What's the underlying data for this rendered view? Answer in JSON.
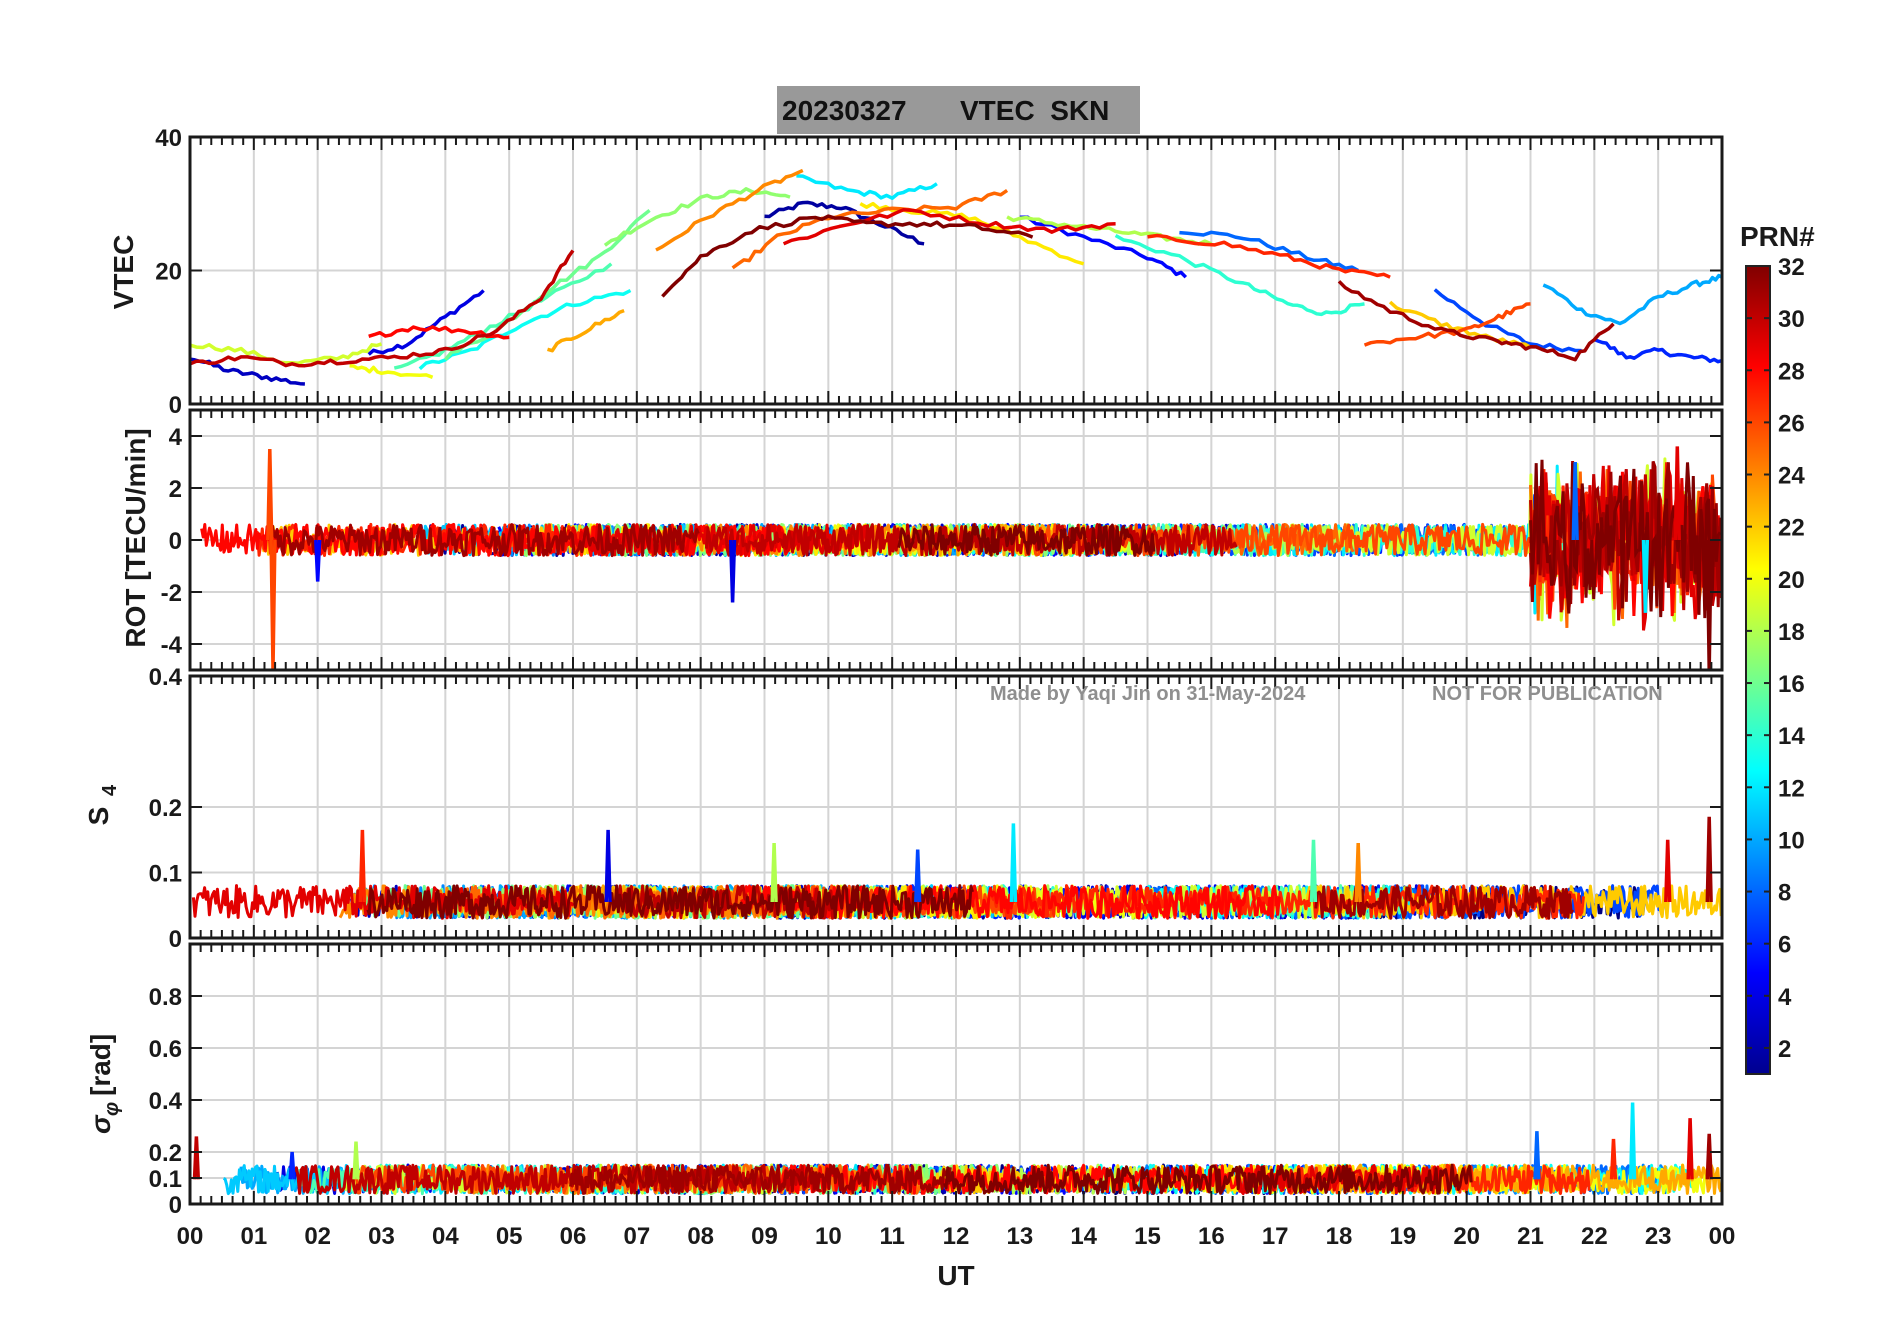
{
  "figure": {
    "title_date": "20230327",
    "title_text": "VTEC  SKN",
    "xlabel": "UT",
    "x_ticks": [
      "00",
      "01",
      "02",
      "03",
      "04",
      "05",
      "06",
      "07",
      "08",
      "09",
      "10",
      "11",
      "12",
      "13",
      "14",
      "15",
      "16",
      "17",
      "18",
      "19",
      "20",
      "21",
      "22",
      "23",
      "00"
    ],
    "watermark_author": "Made by Yaqi Jin on 31-May-2024",
    "watermark_notice": "NOT FOR PUBLICATION",
    "colorbar": {
      "label": "PRN#",
      "range": [
        1,
        32
      ],
      "tick_values": [
        2,
        4,
        6,
        8,
        10,
        12,
        14,
        16,
        18,
        20,
        22,
        24,
        26,
        28,
        30,
        32
      ],
      "tick_labels": [
        "2",
        "4",
        "6",
        "8",
        "10",
        "12",
        "14",
        "16",
        "18",
        "20",
        "22",
        "24",
        "26",
        "28",
        "30",
        "32"
      ]
    }
  },
  "chart_data": [
    {
      "type": "line",
      "panel": "vtec",
      "ylabel": "VTEC",
      "xlim": [
        0,
        24
      ],
      "ylim": [
        0,
        40
      ],
      "y_ticks": [
        0,
        20,
        40
      ],
      "y_tick_labels": [
        "0",
        "20",
        "40"
      ],
      "grid": true,
      "series": [
        {
          "name": "PRN 2",
          "prn": 2,
          "x": [
            9.0,
            9.6,
            10.2,
            10.8,
            11.5
          ],
          "y": [
            28,
            30,
            29.5,
            27,
            24
          ]
        },
        {
          "name": "PRN 3",
          "prn": 3,
          "x": [
            0.0,
            0.6,
            1.2,
            1.8
          ],
          "y": [
            7,
            5,
            4,
            3
          ]
        },
        {
          "name": "PRN 4",
          "prn": 4,
          "x": [
            2.8,
            3.4,
            4.0,
            4.6
          ],
          "y": [
            7.5,
            9,
            13,
            17
          ]
        },
        {
          "name": "PRN 5",
          "prn": 5,
          "x": [
            13.0,
            14.0,
            15.0,
            15.6
          ],
          "y": [
            28,
            25,
            22,
            19
          ]
        },
        {
          "name": "PRN 6",
          "prn": 6,
          "x": [
            22.0,
            22.5,
            23.0,
            23.5,
            24.0
          ],
          "y": [
            10,
            7,
            8,
            7,
            6.5
          ]
        },
        {
          "name": "PRN 7",
          "prn": 7,
          "x": [
            19.5,
            20.3,
            21.0,
            21.8
          ],
          "y": [
            17,
            12,
            9,
            8
          ]
        },
        {
          "name": "PRN 8",
          "prn": 8,
          "x": [
            15.5,
            16.5,
            17.5,
            18.3
          ],
          "y": [
            26,
            25,
            22,
            20
          ]
        },
        {
          "name": "PRN 10",
          "prn": 10,
          "x": [
            21.2,
            21.8,
            22.4,
            23.0,
            23.6,
            24.0
          ],
          "y": [
            18,
            14,
            12,
            16,
            18,
            19
          ]
        },
        {
          "name": "PRN 12",
          "prn": 12,
          "x": [
            9.5,
            10.3,
            11.0,
            11.7
          ],
          "y": [
            34,
            32,
            31,
            33
          ]
        },
        {
          "name": "PRN 13",
          "prn": 13,
          "x": [
            3.6,
            4.4,
            5.2,
            6.0,
            6.9
          ],
          "y": [
            5.5,
            8,
            12,
            15,
            17
          ]
        },
        {
          "name": "PRN 14",
          "prn": 14,
          "x": [
            14.5,
            15.5,
            16.5,
            17.2,
            17.8,
            18.4
          ],
          "y": [
            25,
            22,
            18,
            15,
            13.5,
            15
          ]
        },
        {
          "name": "PRN 15",
          "prn": 15,
          "x": [
            3.2,
            4.0,
            4.8,
            5.6,
            6.6
          ],
          "y": [
            5,
            8,
            12,
            16,
            21
          ]
        },
        {
          "name": "PRN 16",
          "prn": 16,
          "x": [
            4.0,
            4.8,
            5.6,
            6.4,
            7.2
          ],
          "y": [
            7,
            11,
            17,
            22,
            29
          ]
        },
        {
          "name": "PRN 17",
          "prn": 17,
          "x": [
            6.5,
            7.3,
            8.1,
            8.8,
            9.4
          ],
          "y": [
            24,
            28,
            31,
            32,
            31
          ]
        },
        {
          "name": "PRN 18",
          "prn": 18,
          "x": [
            12.8,
            13.6,
            14.4,
            15.2,
            16.0
          ],
          "y": [
            28,
            27,
            26,
            25,
            24
          ]
        },
        {
          "name": "PRN 19",
          "prn": 19,
          "x": [
            0.0,
            0.8,
            1.6,
            2.4,
            3.0
          ],
          "y": [
            9,
            8,
            6,
            7,
            9
          ]
        },
        {
          "name": "PRN 20",
          "prn": 20,
          "x": [
            2.5,
            3.0,
            3.8
          ],
          "y": [
            5.5,
            5,
            4
          ]
        },
        {
          "name": "PRN 21",
          "prn": 21,
          "x": [
            10.5,
            11.3,
            12.2,
            13.0,
            14.0
          ],
          "y": [
            30,
            29,
            28,
            25,
            21
          ]
        },
        {
          "name": "PRN 22",
          "prn": 22,
          "x": [
            18.8,
            19.6,
            20.3,
            21.0
          ],
          "y": [
            15,
            12,
            10,
            8.5
          ]
        },
        {
          "name": "PRN 23",
          "prn": 23,
          "x": [
            5.6,
            6.2,
            6.8
          ],
          "y": [
            8,
            11,
            14
          ]
        },
        {
          "name": "PRN 24",
          "prn": 24,
          "x": [
            7.3,
            8.1,
            8.9,
            9.6
          ],
          "y": [
            23,
            28,
            32,
            35
          ]
        },
        {
          "name": "PRN 25",
          "prn": 25,
          "x": [
            8.5,
            9.2,
            10.0,
            11.0,
            12.0,
            12.8
          ],
          "y": [
            20,
            25,
            28,
            29,
            29.5,
            32
          ]
        },
        {
          "name": "PRN 26",
          "prn": 26,
          "x": [
            18.4,
            19.2,
            20.0,
            20.5,
            21.0
          ],
          "y": [
            9,
            10,
            11,
            13,
            15
          ]
        },
        {
          "name": "PRN 27",
          "prn": 27,
          "x": [
            15.0,
            16.2,
            17.2,
            18.0,
            18.8
          ],
          "y": [
            25,
            24,
            22,
            20,
            19
          ]
        },
        {
          "name": "PRN 28",
          "prn": 28,
          "x": [
            2.8,
            3.5,
            4.3,
            5.0
          ],
          "y": [
            10,
            11.5,
            11,
            10
          ]
        },
        {
          "name": "PRN 29",
          "prn": 29,
          "x": [
            9.3,
            10.3,
            11.3,
            12.5,
            13.5,
            14.5
          ],
          "y": [
            24,
            27,
            29,
            27,
            26,
            27
          ]
        },
        {
          "name": "PRN 30",
          "prn": 30,
          "x": [
            0.0,
            0.8,
            1.6,
            2.4,
            3.2,
            4.0,
            4.8,
            5.5,
            6.0
          ],
          "y": [
            6,
            7,
            6,
            6.5,
            7,
            8,
            11,
            16,
            23
          ]
        },
        {
          "name": "PRN 31",
          "prn": 31,
          "x": [
            18.0,
            18.8,
            19.6,
            20.4,
            21.0,
            21.7,
            22.3
          ],
          "y": [
            18,
            14,
            11,
            9.5,
            8.5,
            7,
            12
          ]
        },
        {
          "name": "PRN 32",
          "prn": 32,
          "x": [
            7.4,
            8.0,
            8.8,
            9.8,
            10.6,
            11.5,
            12.3,
            13.2
          ],
          "y": [
            16.5,
            22,
            26,
            28,
            27,
            27,
            26.5,
            25
          ]
        }
      ]
    },
    {
      "type": "line",
      "panel": "rot",
      "ylabel": "ROT [TECU/min]",
      "xlim": [
        0,
        24
      ],
      "ylim": [
        -5,
        5
      ],
      "y_ticks": [
        -4,
        -2,
        0,
        2,
        4
      ],
      "y_tick_labels": [
        "-4",
        "-2",
        "0",
        "2",
        "4"
      ],
      "grid": true,
      "baseline_band": [
        -0.6,
        0.6
      ],
      "noisy_interval_ut": [
        21,
        24
      ],
      "noisy_amplitude": 3.5,
      "spikes": [
        {
          "prn": 26,
          "x": 1.25,
          "y": 3.5
        },
        {
          "prn": 26,
          "x": 1.3,
          "y": -5
        },
        {
          "prn": 4,
          "x": 8.5,
          "y": -2.4
        },
        {
          "prn": 5,
          "x": 2.0,
          "y": -1.6
        },
        {
          "prn": 8,
          "x": 21.7,
          "y": 3.0
        },
        {
          "prn": 12,
          "x": 22.8,
          "y": -2.8
        },
        {
          "prn": 29,
          "x": 23.3,
          "y": 3.6
        },
        {
          "prn": 32,
          "x": 23.8,
          "y": -5
        }
      ]
    },
    {
      "type": "line",
      "panel": "s4",
      "ylabel": "S4",
      "ylabel_main": "S",
      "ylabel_sub": "4",
      "xlim": [
        0,
        24
      ],
      "ylim": [
        0,
        0.4
      ],
      "y_ticks": [
        0,
        0.1,
        0.2,
        0.4
      ],
      "y_tick_labels": [
        "0",
        "0.1",
        "0.2",
        "0.4"
      ],
      "grid": true,
      "baseline_band": [
        0.03,
        0.08
      ],
      "spikes": [
        {
          "prn": 27,
          "x": 2.7,
          "y": 0.165
        },
        {
          "prn": 4,
          "x": 6.55,
          "y": 0.165
        },
        {
          "prn": 12,
          "x": 12.9,
          "y": 0.175
        },
        {
          "prn": 15,
          "x": 17.6,
          "y": 0.15
        },
        {
          "prn": 24,
          "x": 18.3,
          "y": 0.145
        },
        {
          "prn": 31,
          "x": 23.8,
          "y": 0.185
        },
        {
          "prn": 29,
          "x": 23.15,
          "y": 0.15
        },
        {
          "prn": 7,
          "x": 11.4,
          "y": 0.135
        },
        {
          "prn": 18,
          "x": 9.15,
          "y": 0.145
        }
      ]
    },
    {
      "type": "line",
      "panel": "sigma_phi",
      "ylabel": "σφ [rad]",
      "ylabel_main": "σ",
      "ylabel_sub": "φ",
      "ylabel_unit": "[rad]",
      "xlim": [
        0,
        24
      ],
      "ylim": [
        0,
        1.0
      ],
      "y_ticks": [
        0,
        0.1,
        0.2,
        0.4,
        0.6,
        0.8
      ],
      "y_tick_labels": [
        "0",
        "0.1",
        "0.2",
        "0.4",
        "0.6",
        "0.8"
      ],
      "grid": true,
      "baseline_band": [
        0.04,
        0.15
      ],
      "spikes": [
        {
          "prn": 18,
          "x": 2.6,
          "y": 0.24
        },
        {
          "prn": 6,
          "x": 1.6,
          "y": 0.2
        },
        {
          "prn": 8,
          "x": 21.1,
          "y": 0.28
        },
        {
          "prn": 12,
          "x": 22.6,
          "y": 0.39
        },
        {
          "prn": 29,
          "x": 23.5,
          "y": 0.33
        },
        {
          "prn": 27,
          "x": 22.3,
          "y": 0.25
        },
        {
          "prn": 31,
          "x": 23.8,
          "y": 0.27
        },
        {
          "prn": 30,
          "x": 0.1,
          "y": 0.26
        }
      ]
    }
  ]
}
